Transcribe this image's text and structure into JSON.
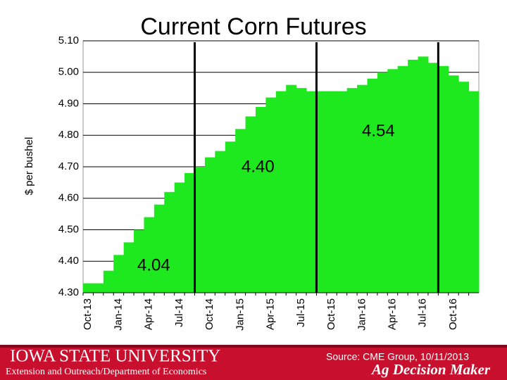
{
  "chart_data": {
    "type": "step-area",
    "title": "Current Corn Futures",
    "y_label": "$ per bushel",
    "categories": [
      "Oct-13",
      null,
      null,
      "Jan-14",
      null,
      null,
      "Apr-14",
      null,
      null,
      "Jul-14",
      null,
      null,
      "Oct-14",
      null,
      null,
      "Jan-15",
      null,
      null,
      "Apr-15",
      null,
      null,
      "Jul-15",
      null,
      null,
      "Oct-15",
      null,
      null,
      "Jan-16",
      null,
      null,
      "Apr-16",
      null,
      null,
      "Jul-16",
      null,
      null,
      "Oct-16",
      null,
      null
    ],
    "values": [
      4.33,
      4.33,
      4.37,
      4.42,
      4.46,
      4.5,
      4.54,
      4.58,
      4.62,
      4.65,
      4.68,
      4.7,
      4.73,
      4.75,
      4.78,
      4.82,
      4.86,
      4.89,
      4.92,
      4.94,
      4.96,
      4.95,
      4.94,
      4.94,
      4.94,
      4.94,
      4.95,
      4.96,
      4.98,
      5.0,
      5.01,
      5.02,
      5.04,
      5.05,
      5.03,
      5.02,
      4.99,
      4.97,
      4.94
    ],
    "color": "#1ee81e",
    "ylim": [
      4.3,
      5.1
    ],
    "yticks": [
      {
        "value": 4.3,
        "label": "4.30"
      },
      {
        "value": 4.4,
        "label": "4.40"
      },
      {
        "value": 4.5,
        "label": "4.50"
      },
      {
        "value": 4.6,
        "label": "4.60"
      },
      {
        "value": 4.7,
        "label": "4.70"
      },
      {
        "value": 4.8,
        "label": "4.80"
      },
      {
        "value": 4.9,
        "label": "4.90"
      },
      {
        "value": 5.0,
        "label": "5.00"
      },
      {
        "value": 5.1,
        "label": "5.10"
      }
    ],
    "grid": true,
    "annotations": [
      "4.04",
      "4.40",
      "4.54"
    ]
  },
  "footer": {
    "university": "IOWA STATE UNIVERSITY",
    "department": "Extension and Outreach/Department of Economics",
    "source": "Source: CME Group, 10/11/2013",
    "brand": "Ag Decision Maker"
  }
}
